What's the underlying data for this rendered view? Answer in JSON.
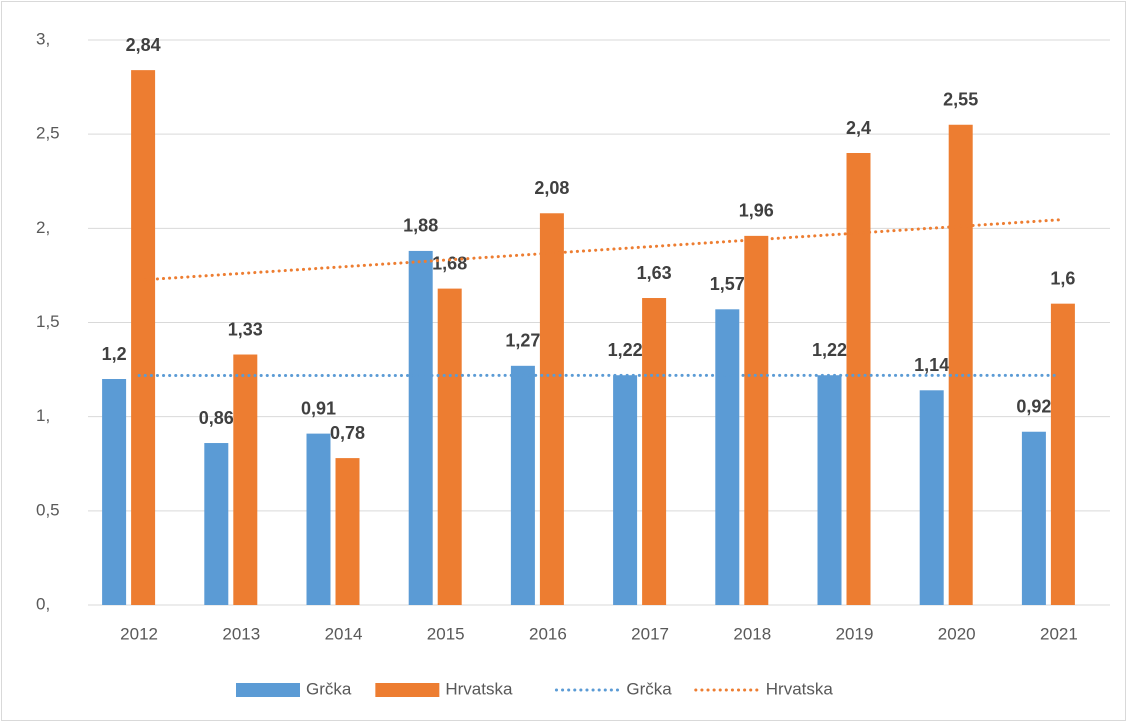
{
  "chart_data": {
    "type": "bar",
    "categories": [
      "2012",
      "2013",
      "2014",
      "2015",
      "2016",
      "2017",
      "2018",
      "2019",
      "2020",
      "2021"
    ],
    "series": [
      {
        "name": "Grčka",
        "color": "#5b9bd5",
        "values": [
          1.2,
          0.86,
          0.91,
          1.88,
          1.27,
          1.22,
          1.57,
          1.22,
          1.14,
          0.92
        ],
        "value_labels": [
          "1,2",
          "0,86",
          "0,91",
          "1,88",
          "1,27",
          "1,22",
          "1,57",
          "1,22",
          "1,14",
          "0,92"
        ],
        "trendline": {
          "name": "Grčka",
          "type": "linear",
          "style": "dotted"
        }
      },
      {
        "name": "Hrvatska",
        "color": "#ed7d31",
        "values": [
          2.84,
          1.33,
          0.78,
          1.68,
          2.08,
          1.63,
          1.96,
          2.4,
          2.55,
          1.6
        ],
        "value_labels": [
          "2,84",
          "1,33",
          "0,78",
          "1,68",
          "2,08",
          "1,63",
          "1,96",
          "2,4",
          "2,55",
          "1,6"
        ],
        "trendline": {
          "name": "Hrvatska",
          "type": "linear",
          "style": "dotted"
        }
      }
    ],
    "ylim": [
      0,
      3
    ],
    "yticks": [
      {
        "value": 0,
        "label": "0,"
      },
      {
        "value": 0.5,
        "label": "0,5"
      },
      {
        "value": 1,
        "label": "1,"
      },
      {
        "value": 1.5,
        "label": "1,5"
      },
      {
        "value": 2,
        "label": "2,"
      },
      {
        "value": 2.5,
        "label": "2,5"
      },
      {
        "value": 3,
        "label": "3,"
      }
    ],
    "grid": true,
    "legend": "bottom"
  }
}
